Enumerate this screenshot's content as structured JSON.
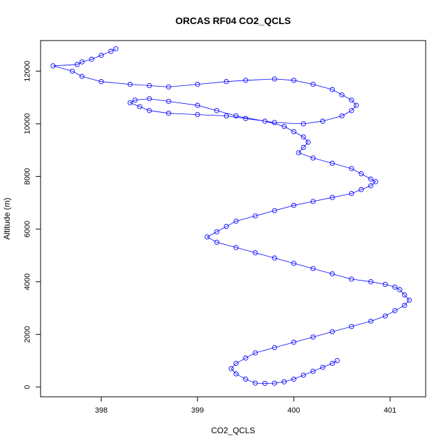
{
  "chart_data": {
    "type": "scatter",
    "connected": true,
    "title": "ORCAS RF04 CO2_QCLS",
    "xlabel": "CO2_QCLS",
    "ylabel": "Altitude (m)",
    "xlim": [
      397.37,
      401.37
    ],
    "ylim": [
      -370,
      13160
    ],
    "xticks": [
      398,
      399,
      400,
      401
    ],
    "yticks": [
      0,
      2000,
      4000,
      6000,
      8000,
      10000,
      12000
    ],
    "grid": false,
    "legend": "none",
    "color": "#0000ff",
    "series": [
      {
        "x": [
          398.15,
          398.1,
          398.0,
          397.9,
          397.8,
          397.75,
          397.5,
          397.7,
          397.8,
          398.0,
          398.3,
          398.5,
          398.7,
          399.0,
          399.3,
          399.5,
          399.8,
          400.0,
          400.2,
          400.4,
          400.5,
          400.6,
          400.65,
          400.6,
          400.5,
          400.3,
          400.1,
          399.8,
          399.5,
          399.3,
          399.0,
          398.7,
          398.5,
          398.4,
          398.3,
          398.35,
          398.5,
          398.7,
          399.0,
          399.2,
          399.4,
          399.7,
          399.9,
          400.0,
          400.1,
          400.15,
          400.1,
          400.05,
          400.2,
          400.4,
          400.6,
          400.7,
          400.8,
          400.85,
          400.8,
          400.7,
          400.6,
          400.4,
          400.2,
          400.0,
          399.8,
          399.6,
          399.4,
          399.3,
          399.2,
          399.1,
          399.2,
          399.4,
          399.6,
          399.8,
          400.0,
          400.2,
          400.4,
          400.6,
          400.8,
          400.95,
          401.05,
          401.1,
          401.15,
          401.2,
          401.15,
          401.05,
          400.95,
          400.8,
          400.6,
          400.4,
          400.2,
          400.0,
          399.8,
          399.6,
          399.5,
          399.4,
          399.35,
          399.4,
          399.5,
          399.6,
          399.7,
          399.8,
          399.9,
          400.0,
          400.1,
          400.2,
          400.3,
          400.4,
          400.45
        ],
        "y": [
          12850,
          12750,
          12600,
          12450,
          12350,
          12250,
          12200,
          12000,
          11800,
          11600,
          11500,
          11450,
          11400,
          11500,
          11600,
          11650,
          11700,
          11650,
          11500,
          11300,
          11100,
          10900,
          10700,
          10500,
          10300,
          10100,
          10000,
          10050,
          10200,
          10300,
          10350,
          10400,
          10500,
          10650,
          10800,
          10900,
          10950,
          10850,
          10700,
          10500,
          10300,
          10100,
          9900,
          9700,
          9500,
          9300,
          9100,
          8900,
          8700,
          8500,
          8300,
          8100,
          7900,
          7800,
          7650,
          7500,
          7350,
          7200,
          7050,
          6900,
          6700,
          6500,
          6300,
          6100,
          5900,
          5700,
          5500,
          5300,
          5100,
          4900,
          4700,
          4500,
          4300,
          4100,
          4000,
          3900,
          3800,
          3700,
          3500,
          3300,
          3100,
          2900,
          2700,
          2500,
          2300,
          2100,
          1900,
          1700,
          1500,
          1300,
          1100,
          900,
          700,
          500,
          300,
          150,
          140,
          150,
          200,
          300,
          450,
          600,
          750,
          900,
          1000
        ]
      }
    ]
  }
}
